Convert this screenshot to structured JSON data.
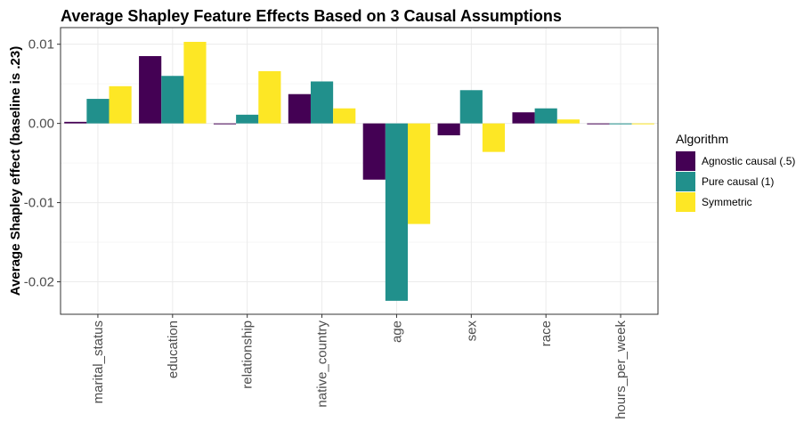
{
  "chart_data": {
    "type": "bar",
    "title": "Average Shapley Feature Effects Based on 3 Causal Assumptions",
    "xlabel": "",
    "ylabel": "Average Shapley effect (baseline is .23)",
    "categories": [
      "marital_status",
      "education",
      "relationship",
      "native_country",
      "age",
      "sex",
      "race",
      "hours_per_week"
    ],
    "series": [
      {
        "name": "Agnostic causal (.5)",
        "color": "#440154",
        "values": [
          0.0002,
          0.0085,
          -0.0001,
          0.0037,
          -0.0071,
          -0.0015,
          0.0014,
          -0.0001
        ]
      },
      {
        "name": "Pure causal (1)",
        "color": "#21908C",
        "values": [
          0.0031,
          0.006,
          0.0011,
          0.0053,
          -0.0224,
          0.0042,
          0.0019,
          -0.0001
        ]
      },
      {
        "name": "Symmetric",
        "color": "#FDE725",
        "values": [
          0.0047,
          0.0103,
          0.0066,
          0.0019,
          -0.0127,
          -0.0036,
          0.0005,
          -0.0001
        ]
      }
    ],
    "ylim": [
      -0.0241,
      0.0121
    ],
    "yticks": [
      0.01,
      0.0,
      -0.01,
      -0.02
    ],
    "ytick_labels": [
      "0.01",
      "0.00",
      "-0.01",
      "-0.02"
    ],
    "grid": true,
    "legend": {
      "title": "Algorithm",
      "position": "right"
    }
  }
}
